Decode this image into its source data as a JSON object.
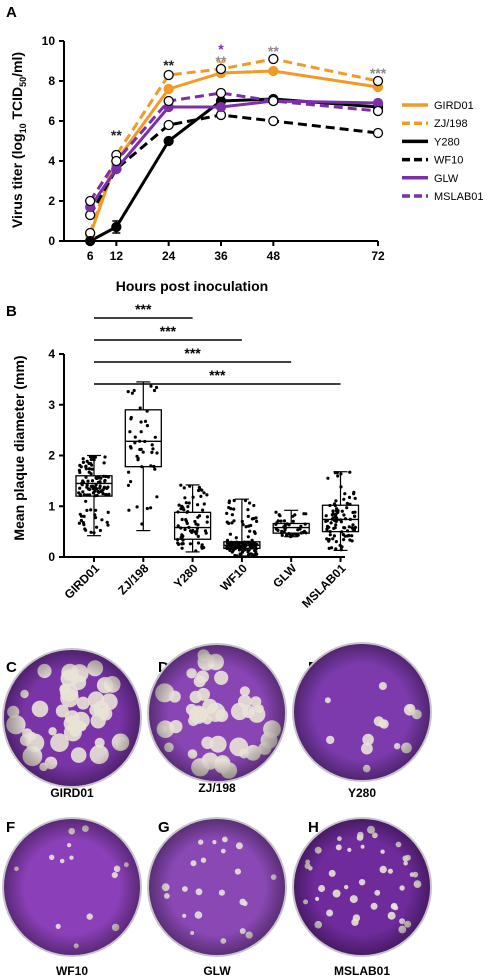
{
  "chart_data": [
    {
      "panel": "A",
      "type": "line",
      "xlabel": "Hours post inoculation",
      "ylabel_parts": [
        "Virus titer (log",
        "10",
        " TCID",
        "50",
        "/ml)"
      ],
      "x_ticks": [
        "6",
        "12",
        "24",
        "36",
        "48",
        "72"
      ],
      "y_ticks": [
        "0",
        "2",
        "4",
        "6",
        "8",
        "10"
      ],
      "ylim": [
        0,
        10
      ],
      "x": [
        6,
        12,
        24,
        36,
        48,
        72
      ],
      "series": [
        {
          "name": "GIRD01",
          "color": "#F29A26",
          "dash": "solid",
          "marker": "filled",
          "values": [
            0.3,
            4.0,
            7.6,
            8.4,
            8.5,
            7.7
          ]
        },
        {
          "name": "ZJ/198",
          "color": "#F29A26",
          "dash": "dashed",
          "marker": "open",
          "values": [
            0.4,
            4.3,
            8.3,
            8.6,
            9.1,
            8.0
          ]
        },
        {
          "name": "Y280",
          "color": "#000000",
          "dash": "solid",
          "marker": "filled",
          "values": [
            0.0,
            0.7,
            5.0,
            7.0,
            7.1,
            6.7
          ]
        },
        {
          "name": "WF10",
          "color": "#000000",
          "dash": "dashed",
          "marker": "open",
          "values": [
            1.3,
            3.6,
            5.8,
            6.3,
            6.0,
            5.4
          ]
        },
        {
          "name": "GLW",
          "color": "#7B2FA8",
          "dash": "solid",
          "marker": "filled",
          "values": [
            1.7,
            3.6,
            6.7,
            6.7,
            7.0,
            6.9
          ]
        },
        {
          "name": "MSLAB01",
          "color": "#7B2FA8",
          "dash": "dashed",
          "marker": "open",
          "values": [
            2.0,
            4.0,
            7.0,
            7.4,
            7.0,
            6.5
          ]
        }
      ],
      "error_bars": [
        {
          "series": "ZJ/198",
          "x": 36,
          "err": 0.35
        },
        {
          "series": "Y280",
          "x": 12,
          "err": 0.3
        }
      ],
      "significance": [
        {
          "x": 12,
          "y": 5.3,
          "text": "**",
          "color": "#222222"
        },
        {
          "x": 24,
          "y": 8.8,
          "text": "**",
          "color": "#222222"
        },
        {
          "x": 36,
          "y": 9.6,
          "text": "*",
          "color": "#7B2FA8"
        },
        {
          "x": 36,
          "y": 9.0,
          "text": "**",
          "color": "#8A8A8A"
        },
        {
          "x": 48,
          "y": 9.5,
          "text": "**",
          "color": "#8A8A8A"
        },
        {
          "x": 72,
          "y": 8.4,
          "text": "***",
          "color": "#8A8A8A"
        }
      ]
    },
    {
      "panel": "B",
      "type": "box",
      "ylabel": "Mean plaque diameter (mm)",
      "categories": [
        "GIRD01",
        "ZJ/198",
        "Y280",
        "WF10",
        "GLW",
        "MSLAB01"
      ],
      "y_ticks": [
        "0",
        "1",
        "2",
        "3",
        "4"
      ],
      "ylim": [
        0,
        4
      ],
      "boxes": [
        {
          "category": "GIRD01",
          "min": 0.42,
          "q1": 1.2,
          "median": 1.45,
          "q3": 1.6,
          "max": 2.0,
          "n_points": 110
        },
        {
          "category": "ZJ/198",
          "min": 0.52,
          "q1": 1.78,
          "median": 2.28,
          "q3": 2.9,
          "max": 3.45,
          "n_points": 45
        },
        {
          "category": "Y280",
          "min": 0.1,
          "q1": 0.35,
          "median": 0.58,
          "q3": 0.88,
          "max": 1.42,
          "n_points": 70
        },
        {
          "category": "WF10",
          "min": 0.02,
          "q1": 0.17,
          "median": 0.23,
          "q3": 0.3,
          "max": 1.14,
          "n_points": 130
        },
        {
          "category": "GLW",
          "min": 0.4,
          "q1": 0.47,
          "median": 0.58,
          "q3": 0.66,
          "max": 0.92,
          "n_points": 45
        },
        {
          "category": "MSLAB01",
          "min": 0.13,
          "q1": 0.5,
          "median": 0.74,
          "q3": 1.02,
          "max": 1.68,
          "n_points": 90
        }
      ],
      "brackets": [
        {
          "from": "GIRD01",
          "to": "Y280",
          "label": "***"
        },
        {
          "from": "GIRD01",
          "to": "WF10",
          "label": "***"
        },
        {
          "from": "GIRD01",
          "to": "GLW",
          "label": "***"
        },
        {
          "from": "GIRD01",
          "to": "MSLAB01",
          "label": "***"
        }
      ]
    }
  ],
  "plaque_panels": [
    {
      "letter": "C",
      "label": "GIRD01",
      "plaques": "many",
      "size": "large",
      "bg": "#7a34a8"
    },
    {
      "letter": "D",
      "label": "ZJ/198",
      "plaques": "many",
      "size": "large",
      "bg": "#8a45b5"
    },
    {
      "letter": "E",
      "label": "Y280",
      "plaques": "few",
      "size": "medium",
      "bg": "#7c3aad"
    },
    {
      "letter": "F",
      "label": "WF10",
      "plaques": "few",
      "size": "small",
      "bg": "#8b3fb8"
    },
    {
      "letter": "G",
      "label": "GLW",
      "plaques": "some",
      "size": "small",
      "bg": "#8a48b5"
    },
    {
      "letter": "H",
      "label": "MSLAB01",
      "plaques": "many",
      "size": "small",
      "bg": "#6f2a9c"
    }
  ],
  "panel_letters": {
    "a": "A",
    "b": "B"
  }
}
